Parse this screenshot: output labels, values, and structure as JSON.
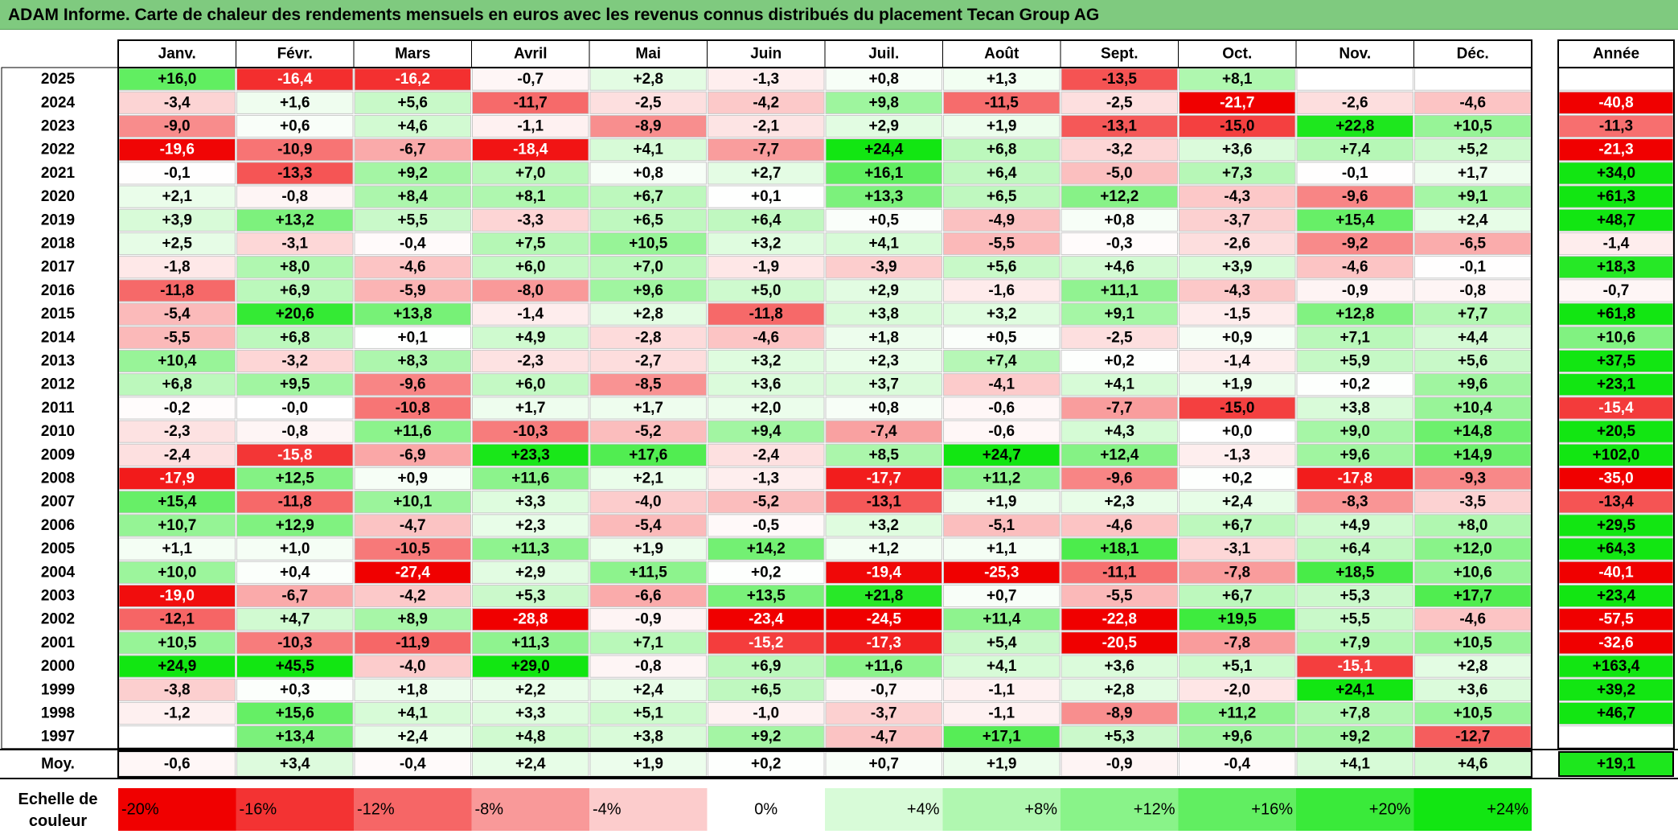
{
  "title": "ADAM Informe. Carte de chaleur des rendements mensuels en euros avec les revenus connus distribués du placement Tecan Group AG",
  "chart_data": {
    "type": "heatmap",
    "months": [
      "Janv.",
      "Févr.",
      "Mars",
      "Avril",
      "Mai",
      "Juin",
      "Juil.",
      "Août",
      "Sept.",
      "Oct.",
      "Nov.",
      "Déc."
    ],
    "year_header": "Année",
    "avg_label": "Moy.",
    "rows": [
      {
        "year": "2025",
        "m": [
          "+16,0",
          "-16,4",
          "-16,2",
          "-0,7",
          "+2,8",
          "-1,3",
          "+0,8",
          "+1,3",
          "-13,5",
          "+8,1",
          "",
          ""
        ],
        "annual": ""
      },
      {
        "year": "2024",
        "m": [
          "-3,4",
          "+1,6",
          "+5,6",
          "-11,7",
          "-2,5",
          "-4,2",
          "+9,8",
          "-11,5",
          "-2,5",
          "-21,7",
          "-2,6",
          "-4,6"
        ],
        "annual": "-40,8"
      },
      {
        "year": "2023",
        "m": [
          "-9,0",
          "+0,6",
          "+4,6",
          "-1,1",
          "-8,9",
          "-2,1",
          "+2,9",
          "+1,9",
          "-13,1",
          "-15,0",
          "+22,8",
          "+10,5"
        ],
        "annual": "-11,3"
      },
      {
        "year": "2022",
        "m": [
          "-19,6",
          "-10,9",
          "-6,7",
          "-18,4",
          "+4,1",
          "-7,7",
          "+24,4",
          "+6,8",
          "-3,2",
          "+3,6",
          "+7,4",
          "+5,2"
        ],
        "annual": "-21,3"
      },
      {
        "year": "2021",
        "m": [
          "-0,1",
          "-13,3",
          "+9,2",
          "+7,0",
          "+0,8",
          "+2,7",
          "+16,1",
          "+6,4",
          "-5,0",
          "+7,3",
          "-0,1",
          "+1,7"
        ],
        "annual": "+34,0"
      },
      {
        "year": "2020",
        "m": [
          "+2,1",
          "-0,8",
          "+8,4",
          "+8,1",
          "+6,7",
          "+0,1",
          "+13,3",
          "+6,5",
          "+12,2",
          "-4,3",
          "-9,6",
          "+9,1"
        ],
        "annual": "+61,3"
      },
      {
        "year": "2019",
        "m": [
          "+3,9",
          "+13,2",
          "+5,5",
          "-3,3",
          "+6,5",
          "+6,4",
          "+0,5",
          "-4,9",
          "+0,8",
          "-3,7",
          "+15,4",
          "+2,4"
        ],
        "annual": "+48,7"
      },
      {
        "year": "2018",
        "m": [
          "+2,5",
          "-3,1",
          "-0,4",
          "+7,5",
          "+10,5",
          "+3,2",
          "+4,1",
          "-5,5",
          "-0,3",
          "-2,6",
          "-9,2",
          "-6,5"
        ],
        "annual": "-1,4"
      },
      {
        "year": "2017",
        "m": [
          "-1,8",
          "+8,0",
          "-4,6",
          "+6,0",
          "+7,0",
          "-1,9",
          "-3,9",
          "+5,6",
          "+4,6",
          "+3,9",
          "-4,6",
          "-0,1"
        ],
        "annual": "+18,3"
      },
      {
        "year": "2016",
        "m": [
          "-11,8",
          "+6,9",
          "-5,9",
          "-8,0",
          "+9,6",
          "+5,0",
          "+2,9",
          "-1,6",
          "+11,1",
          "-4,3",
          "-0,9",
          "-0,8"
        ],
        "annual": "-0,7"
      },
      {
        "year": "2015",
        "m": [
          "-5,4",
          "+20,6",
          "+13,8",
          "-1,4",
          "+2,8",
          "-11,8",
          "+3,8",
          "+3,2",
          "+9,1",
          "-1,5",
          "+12,8",
          "+7,7"
        ],
        "annual": "+61,8"
      },
      {
        "year": "2014",
        "m": [
          "-5,5",
          "+6,8",
          "+0,1",
          "+4,9",
          "-2,8",
          "-4,6",
          "+1,8",
          "+0,5",
          "-2,5",
          "+0,9",
          "+7,1",
          "+4,4"
        ],
        "annual": "+10,6"
      },
      {
        "year": "2013",
        "m": [
          "+10,4",
          "-3,2",
          "+8,3",
          "-2,3",
          "-2,7",
          "+3,2",
          "+2,3",
          "+7,4",
          "+0,2",
          "-1,4",
          "+5,9",
          "+5,6"
        ],
        "annual": "+37,5"
      },
      {
        "year": "2012",
        "m": [
          "+6,8",
          "+9,5",
          "-9,6",
          "+6,0",
          "-8,5",
          "+3,6",
          "+3,7",
          "-4,1",
          "+4,1",
          "+1,9",
          "+0,2",
          "+9,6"
        ],
        "annual": "+23,1"
      },
      {
        "year": "2011",
        "m": [
          "-0,2",
          "-0,0",
          "-10,8",
          "+1,7",
          "+1,7",
          "+2,0",
          "+0,8",
          "-0,6",
          "-7,7",
          "-15,0",
          "+3,8",
          "+10,4"
        ],
        "annual": "-15,4"
      },
      {
        "year": "2010",
        "m": [
          "-2,3",
          "-0,8",
          "+11,6",
          "-10,3",
          "-5,2",
          "+9,4",
          "-7,4",
          "-0,6",
          "+4,3",
          "+0,0",
          "+9,0",
          "+14,8"
        ],
        "annual": "+20,5"
      },
      {
        "year": "2009",
        "m": [
          "-2,4",
          "-15,8",
          "-6,9",
          "+23,3",
          "+17,6",
          "-2,4",
          "+8,5",
          "+24,7",
          "+12,4",
          "-1,3",
          "+9,6",
          "+14,9"
        ],
        "annual": "+102,0"
      },
      {
        "year": "2008",
        "m": [
          "-17,9",
          "+12,5",
          "+0,9",
          "+11,6",
          "+2,1",
          "-1,3",
          "-17,7",
          "+11,2",
          "-9,6",
          "+0,2",
          "-17,8",
          "-9,3"
        ],
        "annual": "-35,0"
      },
      {
        "year": "2007",
        "m": [
          "+15,4",
          "-11,8",
          "+10,1",
          "+3,3",
          "-4,0",
          "-5,2",
          "-13,1",
          "+1,9",
          "+2,3",
          "+2,4",
          "-8,3",
          "-3,5"
        ],
        "annual": "-13,4"
      },
      {
        "year": "2006",
        "m": [
          "+10,7",
          "+12,9",
          "-4,7",
          "+2,3",
          "-5,4",
          "-0,5",
          "+3,2",
          "-5,1",
          "-4,6",
          "+6,7",
          "+4,9",
          "+8,0"
        ],
        "annual": "+29,5"
      },
      {
        "year": "2005",
        "m": [
          "+1,1",
          "+1,0",
          "-10,5",
          "+11,3",
          "+1,9",
          "+14,2",
          "+1,2",
          "+1,1",
          "+18,1",
          "-3,1",
          "+6,4",
          "+12,0"
        ],
        "annual": "+64,3"
      },
      {
        "year": "2004",
        "m": [
          "+10,0",
          "+0,4",
          "-27,4",
          "+2,9",
          "+11,5",
          "+0,2",
          "-19,4",
          "-25,3",
          "-11,1",
          "-7,8",
          "+18,5",
          "+10,6"
        ],
        "annual": "-40,1"
      },
      {
        "year": "2003",
        "m": [
          "-19,0",
          "-6,7",
          "-4,2",
          "+5,3",
          "-6,6",
          "+13,5",
          "+21,8",
          "+0,7",
          "-5,5",
          "+6,7",
          "+5,3",
          "+17,7"
        ],
        "annual": "+23,4"
      },
      {
        "year": "2002",
        "m": [
          "-12,1",
          "+4,7",
          "+8,9",
          "-28,8",
          "-0,9",
          "-23,4",
          "-24,5",
          "+11,4",
          "-22,8",
          "+19,5",
          "+5,5",
          "-4,6"
        ],
        "annual": "-57,5"
      },
      {
        "year": "2001",
        "m": [
          "+10,5",
          "-10,3",
          "-11,9",
          "+11,3",
          "+7,1",
          "-15,2",
          "-17,3",
          "+5,4",
          "-20,5",
          "-7,8",
          "+7,9",
          "+10,5"
        ],
        "annual": "-32,6"
      },
      {
        "year": "2000",
        "m": [
          "+24,9",
          "+45,5",
          "-4,0",
          "+29,0",
          "-0,8",
          "+6,9",
          "+11,6",
          "+4,1",
          "+3,6",
          "+5,1",
          "-15,1",
          "+2,8"
        ],
        "annual": "+163,4"
      },
      {
        "year": "1999",
        "m": [
          "-3,8",
          "+0,3",
          "+1,8",
          "+2,2",
          "+2,4",
          "+6,5",
          "-0,7",
          "-1,1",
          "+2,8",
          "-2,0",
          "+24,1",
          "+3,6"
        ],
        "annual": "+39,2"
      },
      {
        "year": "1998",
        "m": [
          "-1,2",
          "+15,6",
          "+4,1",
          "+3,3",
          "+5,1",
          "-1,0",
          "-3,7",
          "-1,1",
          "-8,9",
          "+11,2",
          "+7,8",
          "+10,5"
        ],
        "annual": "+46,7"
      },
      {
        "year": "1997",
        "m": [
          "",
          "+13,4",
          "+2,4",
          "+4,8",
          "+3,8",
          "+9,2",
          "-4,7",
          "+17,1",
          "+5,3",
          "+9,6",
          "+9,2",
          "-12,7"
        ],
        "annual": ""
      }
    ],
    "averages": {
      "m": [
        "-0,6",
        "+3,4",
        "-0,4",
        "+2,4",
        "+1,9",
        "+0,2",
        "+0,7",
        "+1,9",
        "-0,9",
        "-0,4",
        "+4,1",
        "+4,6"
      ],
      "annual": "+19,1"
    },
    "scale_label": [
      "Echelle de",
      "couleur"
    ],
    "scale": [
      "-20%",
      "-16%",
      "-12%",
      "-8%",
      "-4%",
      "0%",
      "+4%",
      "+8%",
      "+12%",
      "+16%",
      "+20%",
      "+24%"
    ]
  }
}
